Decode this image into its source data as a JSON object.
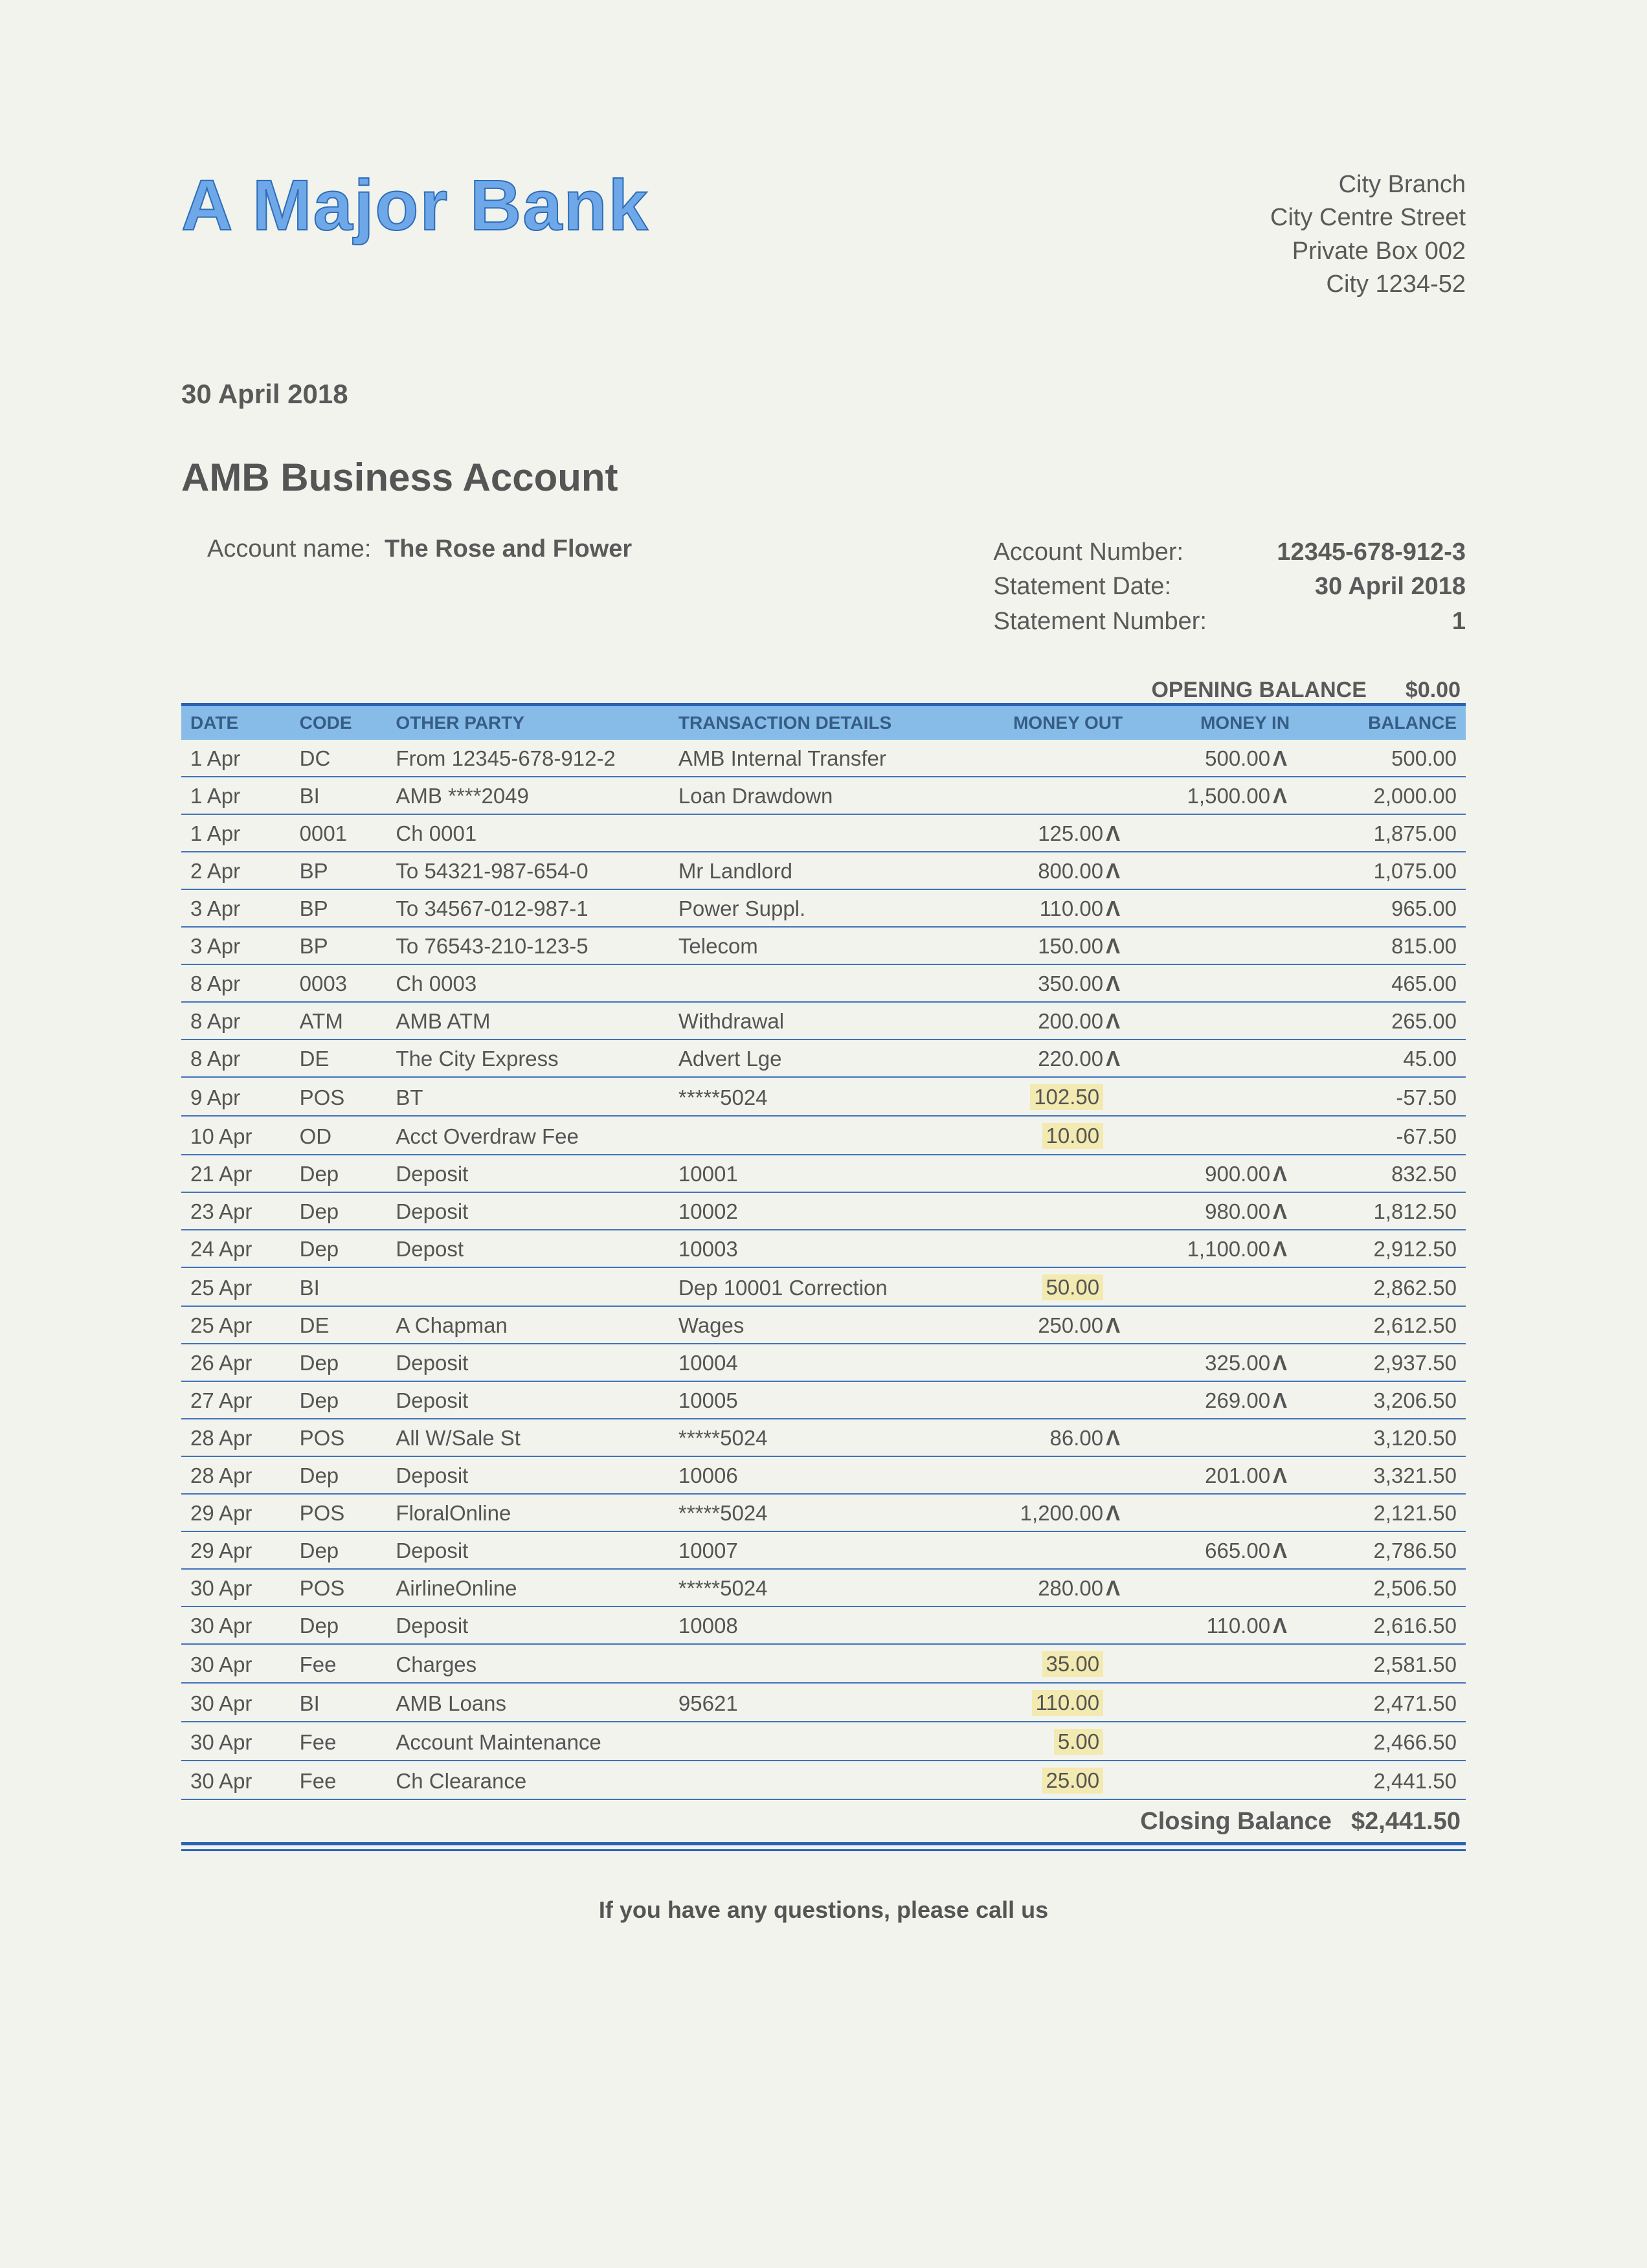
{
  "bank": {
    "name": "A Major Bank"
  },
  "branch": {
    "line1": "City Branch",
    "line2": "City Centre Street",
    "line3": "Private Box 002",
    "line4": "City 1234-52"
  },
  "statement": {
    "date_issued": "30 April 2018",
    "title": "AMB Business Account",
    "account_name_label": "Account name:",
    "account_name": "The Rose and Flower",
    "account_number_label": "Account Number:",
    "account_number": "12345-678-912-3",
    "statement_date_label": "Statement Date:",
    "statement_date": "30 April 2018",
    "statement_number_label": "Statement Number:",
    "statement_number": "1"
  },
  "opening": {
    "label": "OPENING BALANCE",
    "value": "$0.00"
  },
  "table": {
    "columns": [
      "DATE",
      "CODE",
      "OTHER PARTY",
      "TRANSACTION DETAILS",
      "MONEY OUT",
      "MONEY IN",
      "BALANCE"
    ],
    "col_classes": [
      "col-date",
      "col-code",
      "col-party",
      "col-det",
      "col-out",
      "col-in",
      "col-bal"
    ],
    "num_cols": [
      4,
      5,
      6
    ],
    "rows": [
      {
        "date": "1 Apr",
        "code": "DC",
        "party": "From 12345-678-912-2",
        "details": "AMB Internal Transfer",
        "out": "",
        "in": "500.00",
        "in_caret": true,
        "balance": "500.00"
      },
      {
        "date": "1 Apr",
        "code": "BI",
        "party": "AMB ****2049",
        "details": "Loan Drawdown",
        "out": "",
        "in": "1,500.00",
        "in_caret": true,
        "balance": "2,000.00"
      },
      {
        "date": "1 Apr",
        "code": "0001",
        "party": "Ch 0001",
        "details": "",
        "out": "125.00",
        "out_caret": true,
        "in": "",
        "balance": "1,875.00"
      },
      {
        "date": "2 Apr",
        "code": "BP",
        "party": "To 54321-987-654-0",
        "details": "Mr Landlord",
        "out": "800.00",
        "out_caret": true,
        "in": "",
        "balance": "1,075.00"
      },
      {
        "date": "3 Apr",
        "code": "BP",
        "party": "To 34567-012-987-1",
        "details": "Power Suppl.",
        "out": "110.00",
        "out_caret": true,
        "in": "",
        "balance": "965.00"
      },
      {
        "date": "3 Apr",
        "code": "BP",
        "party": "To 76543-210-123-5",
        "details": "Telecom",
        "out": "150.00",
        "out_caret": true,
        "in": "",
        "balance": "815.00"
      },
      {
        "date": "8 Apr",
        "code": "0003",
        "party": "Ch 0003",
        "details": "",
        "out": "350.00",
        "out_caret": true,
        "in": "",
        "balance": "465.00"
      },
      {
        "date": "8 Apr",
        "code": "ATM",
        "party": "AMB ATM",
        "details": "Withdrawal",
        "out": "200.00",
        "out_caret": true,
        "in": "",
        "balance": "265.00"
      },
      {
        "date": "8 Apr",
        "code": "DE",
        "party": "The City Express",
        "details": "Advert Lge",
        "out": "220.00",
        "out_caret": true,
        "in": "",
        "balance": "45.00"
      },
      {
        "date": "9 Apr",
        "code": "POS",
        "party": "BT",
        "details": "*****5024",
        "out": "102.50",
        "out_hl": true,
        "in": "",
        "balance": "-57.50"
      },
      {
        "date": "10 Apr",
        "code": "OD",
        "party": "Acct Overdraw Fee",
        "details": "",
        "out": "10.00",
        "out_hl": true,
        "in": "",
        "balance": "-67.50"
      },
      {
        "date": "21 Apr",
        "code": "Dep",
        "party": "Deposit",
        "details": "10001",
        "out": "",
        "in": "900.00",
        "in_caret": true,
        "balance": "832.50"
      },
      {
        "date": "23 Apr",
        "code": "Dep",
        "party": "Deposit",
        "details": "10002",
        "out": "",
        "in": "980.00",
        "in_caret": true,
        "balance": "1,812.50"
      },
      {
        "date": "24 Apr",
        "code": "Dep",
        "party": "Depost",
        "details": "10003",
        "out": "",
        "in": "1,100.00",
        "in_caret": true,
        "balance": "2,912.50"
      },
      {
        "date": "25 Apr",
        "code": "BI",
        "party": "",
        "details": "Dep 10001 Correction",
        "out": "50.00",
        "out_hl": true,
        "in": "",
        "balance": "2,862.50"
      },
      {
        "date": "25 Apr",
        "code": "DE",
        "party": "A Chapman",
        "details": "Wages",
        "out": "250.00",
        "out_caret": true,
        "in": "",
        "balance": "2,612.50"
      },
      {
        "date": "26 Apr",
        "code": "Dep",
        "party": "Deposit",
        "details": "10004",
        "out": "",
        "in": "325.00",
        "in_caret": true,
        "balance": "2,937.50"
      },
      {
        "date": "27 Apr",
        "code": "Dep",
        "party": "Deposit",
        "details": "10005",
        "out": "",
        "in": "269.00",
        "in_caret": true,
        "balance": "3,206.50"
      },
      {
        "date": "28 Apr",
        "code": "POS",
        "party": "All W/Sale St",
        "details": "*****5024",
        "out": "86.00",
        "out_caret": true,
        "in": "",
        "balance": "3,120.50"
      },
      {
        "date": "28 Apr",
        "code": "Dep",
        "party": "Deposit",
        "details": "10006",
        "out": "",
        "in": "201.00",
        "in_caret": true,
        "balance": "3,321.50"
      },
      {
        "date": "29 Apr",
        "code": "POS",
        "party": "FloralOnline",
        "details": "*****5024",
        "out": "1,200.00",
        "out_caret": true,
        "in": "",
        "balance": "2,121.50"
      },
      {
        "date": "29 Apr",
        "code": "Dep",
        "party": "Deposit",
        "details": "10007",
        "out": "",
        "in": "665.00",
        "in_caret": true,
        "balance": "2,786.50"
      },
      {
        "date": "30 Apr",
        "code": "POS",
        "party": "AirlineOnline",
        "details": "*****5024",
        "out": "280.00",
        "out_caret": true,
        "in": "",
        "balance": "2,506.50"
      },
      {
        "date": "30 Apr",
        "code": "Dep",
        "party": "Deposit",
        "details": "10008",
        "out": "",
        "in": "110.00",
        "in_caret": true,
        "balance": "2,616.50"
      },
      {
        "date": "30 Apr",
        "code": "Fee",
        "party": "Charges",
        "details": "",
        "out": "35.00",
        "out_hl": true,
        "in": "",
        "balance": "2,581.50"
      },
      {
        "date": "30 Apr",
        "code": "BI",
        "party": "AMB Loans",
        "details": "95621",
        "out": "110.00",
        "out_hl": true,
        "in": "",
        "balance": "2,471.50"
      },
      {
        "date": "30 Apr",
        "code": "Fee",
        "party": "Account Maintenance",
        "details": "",
        "out": "5.00",
        "out_hl": true,
        "in": "",
        "balance": "2,466.50"
      },
      {
        "date": "30 Apr",
        "code": "Fee",
        "party": "Ch Clearance",
        "details": "",
        "out": "25.00",
        "out_hl": true,
        "in": "",
        "balance": "2,441.50"
      }
    ]
  },
  "closing": {
    "label": "Closing Balance",
    "value": "$2,441.50"
  },
  "footer": {
    "note": "If you have any questions, please call us"
  },
  "style": {
    "colors": {
      "page_bg": "#f1f3ec",
      "text": "#5a5a5a",
      "bank_fill": "#6fa8e8",
      "bank_stroke": "#2d6db8",
      "header_bg": "#88bce8",
      "header_text": "#355d86",
      "row_border": "#3f73bb",
      "highlight": "#f2eab0",
      "heavy_rule": "#2a62b6"
    },
    "fonts": {
      "base_family": "Arial",
      "bank_name_pt": 82,
      "body_pt": 25,
      "title_pt": 45
    }
  }
}
